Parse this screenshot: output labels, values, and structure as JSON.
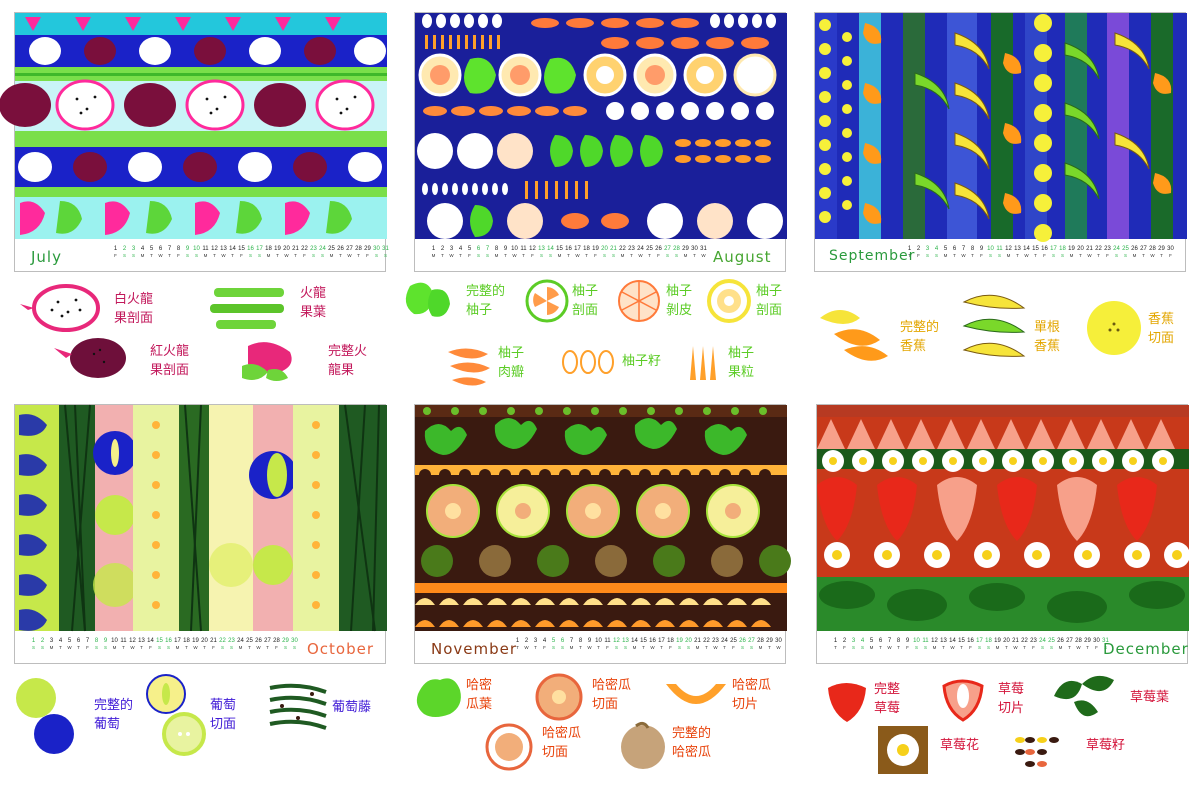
{
  "colors": {
    "july": "#2a9a3c",
    "july_label": "#c2185b",
    "august": "#47a632",
    "august_label": "#5ccc26",
    "september": "#2a9a3c",
    "september_label": "#e3a600",
    "october": "#e8663d",
    "october_label": "#3f1ad6",
    "november": "#8a3a16",
    "november_label": "#e8420a",
    "december": "#2a9a3c",
    "december_label": "#d3143a",
    "weekend": "#2bb34a",
    "holiday": "#e8663d"
  },
  "cards": [
    {
      "month": "July",
      "days": [
        "1",
        "2",
        "3",
        "4",
        "5",
        "6",
        "7",
        "8",
        "9",
        "10",
        "11",
        "12",
        "13",
        "14",
        "15",
        "16",
        "17",
        "18",
        "19",
        "20",
        "21",
        "22",
        "23",
        "24",
        "25",
        "26",
        "27",
        "28",
        "29",
        "30",
        "31"
      ],
      "weekdays": [
        "F",
        "S",
        "S",
        "M",
        "T",
        "W",
        "T",
        "F",
        "S",
        "S",
        "M",
        "T",
        "W",
        "T",
        "F",
        "S",
        "S",
        "M",
        "T",
        "W",
        "T",
        "F",
        "S",
        "S",
        "M",
        "T",
        "W",
        "T",
        "F",
        "S",
        "S"
      ]
    },
    {
      "month": "August",
      "days": [
        "1",
        "2",
        "3",
        "4",
        "5",
        "6",
        "7",
        "8",
        "9",
        "10",
        "11",
        "12",
        "13",
        "14",
        "15",
        "16",
        "17",
        "18",
        "19",
        "20",
        "21",
        "22",
        "23",
        "24",
        "25",
        "26",
        "27",
        "28",
        "29",
        "30",
        "31"
      ],
      "weekdays": [
        "M",
        "T",
        "W",
        "T",
        "F",
        "S",
        "S",
        "M",
        "T",
        "W",
        "T",
        "F",
        "S",
        "S",
        "M",
        "T",
        "W",
        "T",
        "F",
        "S",
        "S",
        "M",
        "T",
        "W",
        "T",
        "F",
        "S",
        "S",
        "M",
        "T",
        "W"
      ]
    },
    {
      "month": "September",
      "days": [
        "1",
        "2",
        "3",
        "4",
        "5",
        "6",
        "7",
        "8",
        "9",
        "10",
        "11",
        "12",
        "13",
        "14",
        "15",
        "16",
        "17",
        "18",
        "19",
        "20",
        "21",
        "22",
        "23",
        "24",
        "25",
        "26",
        "27",
        "28",
        "29",
        "30"
      ],
      "weekdays": [
        "T",
        "F",
        "S",
        "S",
        "M",
        "T",
        "W",
        "T",
        "F",
        "S",
        "S",
        "M",
        "T",
        "W",
        "T",
        "F",
        "S",
        "S",
        "M",
        "T",
        "W",
        "T",
        "F",
        "S",
        "S",
        "M",
        "T",
        "W",
        "T",
        "F"
      ]
    },
    {
      "month": "October",
      "days": [
        "1",
        "2",
        "3",
        "4",
        "5",
        "6",
        "7",
        "8",
        "9",
        "10",
        "11",
        "12",
        "13",
        "14",
        "15",
        "16",
        "17",
        "18",
        "19",
        "20",
        "21",
        "22",
        "23",
        "24",
        "25",
        "26",
        "27",
        "28",
        "29",
        "30"
      ],
      "weekdays": [
        "S",
        "S",
        "M",
        "T",
        "W",
        "T",
        "F",
        "S",
        "S",
        "M",
        "T",
        "W",
        "T",
        "F",
        "S",
        "S",
        "M",
        "T",
        "W",
        "T",
        "F",
        "S",
        "S",
        "M",
        "T",
        "W",
        "T",
        "F",
        "S",
        "S"
      ]
    },
    {
      "month": "November",
      "days": [
        "1",
        "2",
        "3",
        "4",
        "5",
        "6",
        "7",
        "8",
        "9",
        "10",
        "11",
        "12",
        "13",
        "14",
        "15",
        "16",
        "17",
        "18",
        "19",
        "20",
        "21",
        "22",
        "23",
        "24",
        "25",
        "26",
        "27",
        "28",
        "29",
        "30"
      ],
      "weekdays": [
        "T",
        "W",
        "T",
        "F",
        "S",
        "S",
        "M",
        "T",
        "W",
        "T",
        "F",
        "S",
        "S",
        "M",
        "T",
        "W",
        "T",
        "F",
        "S",
        "S",
        "M",
        "T",
        "W",
        "T",
        "F",
        "S",
        "S",
        "M",
        "T",
        "W"
      ]
    },
    {
      "month": "December",
      "days": [
        "1",
        "2",
        "3",
        "4",
        "5",
        "6",
        "7",
        "8",
        "9",
        "10",
        "11",
        "12",
        "13",
        "14",
        "15",
        "16",
        "17",
        "18",
        "19",
        "20",
        "21",
        "22",
        "23",
        "24",
        "25",
        "26",
        "27",
        "28",
        "29",
        "30",
        "31"
      ],
      "weekdays": [
        "T",
        "F",
        "S",
        "S",
        "M",
        "T",
        "W",
        "T",
        "F",
        "S",
        "S",
        "M",
        "T",
        "W",
        "T",
        "F",
        "S",
        "S",
        "M",
        "T",
        "W",
        "T",
        "F",
        "S",
        "S",
        "M",
        "T",
        "W",
        "T",
        "F",
        "S"
      ]
    }
  ],
  "legends": {
    "july": [
      "白火龍\n果剖面",
      "火龍\n果葉",
      "紅火龍\n果剖面",
      "完整火\n龍果"
    ],
    "august": [
      "完整的\n柚子",
      "柚子\n剖面",
      "柚子\n剝皮",
      "柚子\n剖面",
      "柚子\n肉瓣",
      "柚子籽",
      "柚子\n果粒"
    ],
    "september": [
      "完整的\n香蕉",
      "單根\n香蕉",
      "香蕉\n切面"
    ],
    "october": [
      "完整的\n葡萄",
      "葡萄\n切面",
      "葡萄藤"
    ],
    "november": [
      "哈密\n瓜葉",
      "哈密瓜\n切面",
      "哈密瓜\n切片",
      "哈密瓜\n切面",
      "完整的\n哈密瓜"
    ],
    "december": [
      "完整\n草莓",
      "草莓\n切片",
      "草莓葉",
      "草莓花",
      "草莓籽"
    ]
  }
}
